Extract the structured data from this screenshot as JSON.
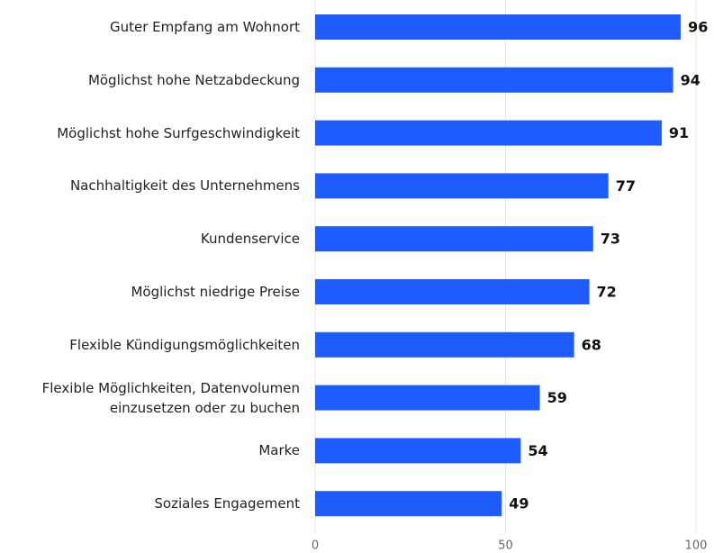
{
  "chart_data": {
    "type": "bar",
    "orientation": "horizontal",
    "categories": [
      "Guter Empfang am Wohnort",
      "Möglichst hohe Netzabdeckung",
      "Möglichst hohe Surfgeschwindigkeit",
      "Nachhaltigkeit des Unternehmens",
      "Kundenservice",
      "Möglichst niedrige Preise",
      "Flexible Kündigungsmöglichkeiten",
      "Flexible Möglichkeiten, Datenvolumen\neinzusetzen oder zu buchen",
      "Marke",
      "Soziales Engagement"
    ],
    "values": [
      96,
      94,
      91,
      77,
      73,
      72,
      68,
      59,
      54,
      49
    ],
    "color": "#1f5cff",
    "xlim": [
      0,
      100
    ],
    "xticks": [
      0,
      50,
      100
    ],
    "grid": true
  }
}
